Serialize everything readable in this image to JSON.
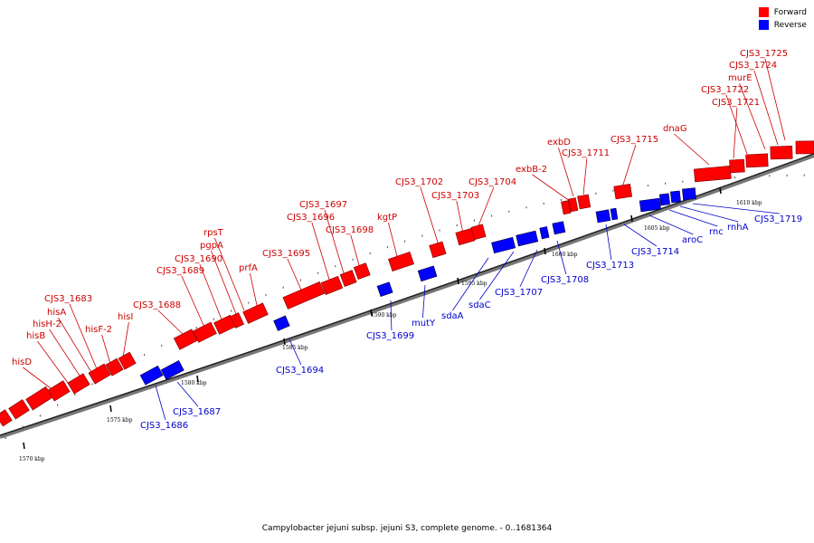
{
  "legend": {
    "forward_label": "Forward",
    "reverse_label": "Reverse",
    "forward_color": "#ff0000",
    "reverse_color": "#0000ff"
  },
  "caption": "Campylobacter jejuni subsp. jejuni S3, complete genome. - 0..1681364",
  "ticks": [
    "1570 kbp",
    "1575 kbp",
    "1580 kbp",
    "1585 kbp",
    "1590 kbp",
    "1595 kbp",
    "1600 kbp",
    "1605 kbp",
    "1610 kbp"
  ],
  "forward_genes": [
    "hisD",
    "hisB",
    "hisH-2",
    "hisA",
    "CJS3_1683",
    "hisF-2",
    "hisI",
    "CJS3_1688",
    "CJS3_1689",
    "CJS3_1690",
    "pgpA",
    "rpsT",
    "prfA",
    "CJS3_1695",
    "CJS3_1696",
    "CJS3_1697",
    "CJS3_1698",
    "kgtP",
    "CJS3_1702",
    "CJS3_1703",
    "CJS3_1704",
    "exbB-2",
    "exbD",
    "CJS3_1711",
    "CJS3_1715",
    "dnaG",
    "CJS3_1721",
    "CJS3_1722",
    "murE",
    "CJS3_1724",
    "CJS3_1725"
  ],
  "reverse_genes": [
    "CJS3_1686",
    "CJS3_1687",
    "CJS3_1694",
    "CJS3_1699",
    "mutY",
    "sdaA",
    "sdaC",
    "CJS3_1707",
    "CJS3_1708",
    "CJS3_1713",
    "CJS3_1714",
    "aroC",
    "rnc",
    "rnhA",
    "CJS3_1719"
  ]
}
